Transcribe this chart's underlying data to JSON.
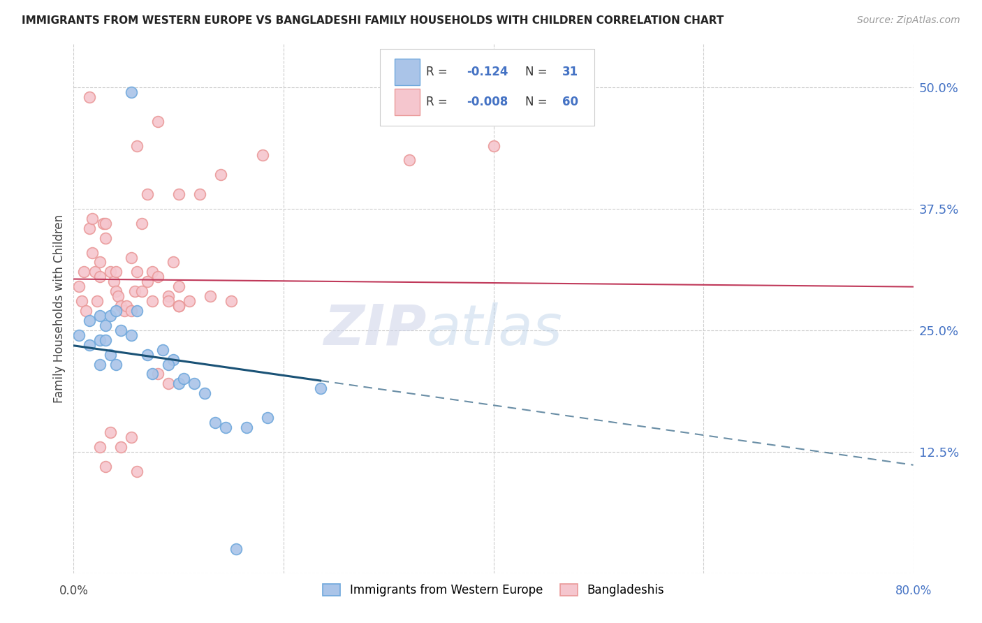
{
  "title": "IMMIGRANTS FROM WESTERN EUROPE VS BANGLADESHI FAMILY HOUSEHOLDS WITH CHILDREN CORRELATION CHART",
  "source": "Source: ZipAtlas.com",
  "ylabel": "Family Households with Children",
  "yticks": [
    0.0,
    0.125,
    0.25,
    0.375,
    0.5
  ],
  "ytick_labels": [
    "",
    "12.5%",
    "25.0%",
    "37.5%",
    "50.0%"
  ],
  "blue_r": -0.124,
  "blue_n": 31,
  "pink_r": -0.008,
  "pink_n": 60,
  "blue_edge_color": "#6fa8dc",
  "pink_edge_color": "#ea9999",
  "blue_line_color": "#1a5276",
  "pink_line_color": "#c0395a",
  "blue_fill_color": "#aac4e8",
  "pink_fill_color": "#f5c6ce",
  "xlim": [
    0.0,
    0.8
  ],
  "ylim": [
    0.0,
    0.545
  ],
  "blue_x": [
    0.055,
    0.005,
    0.015,
    0.025,
    0.015,
    0.025,
    0.03,
    0.035,
    0.04,
    0.025,
    0.03,
    0.035,
    0.045,
    0.04,
    0.055,
    0.06,
    0.07,
    0.075,
    0.085,
    0.095,
    0.09,
    0.1,
    0.105,
    0.115,
    0.125,
    0.135,
    0.145,
    0.165,
    0.185,
    0.235,
    0.155
  ],
  "blue_y": [
    0.495,
    0.245,
    0.26,
    0.265,
    0.235,
    0.24,
    0.255,
    0.265,
    0.27,
    0.215,
    0.24,
    0.225,
    0.25,
    0.215,
    0.245,
    0.27,
    0.225,
    0.205,
    0.23,
    0.22,
    0.215,
    0.195,
    0.2,
    0.195,
    0.185,
    0.155,
    0.15,
    0.15,
    0.16,
    0.19,
    0.025
  ],
  "pink_x": [
    0.005,
    0.01,
    0.008,
    0.012,
    0.015,
    0.018,
    0.02,
    0.018,
    0.022,
    0.025,
    0.025,
    0.028,
    0.03,
    0.03,
    0.035,
    0.038,
    0.04,
    0.04,
    0.042,
    0.045,
    0.048,
    0.05,
    0.055,
    0.058,
    0.06,
    0.065,
    0.07,
    0.075,
    0.08,
    0.09,
    0.095,
    0.1,
    0.11,
    0.13,
    0.15,
    0.1,
    0.12,
    0.14,
    0.08,
    0.06,
    0.065,
    0.07,
    0.075,
    0.055,
    0.09,
    0.1,
    0.035,
    0.045,
    0.025,
    0.03,
    0.32,
    0.1,
    0.1,
    0.055,
    0.06,
    0.08,
    0.18,
    0.4,
    0.09,
    0.015
  ],
  "pink_y": [
    0.295,
    0.31,
    0.28,
    0.27,
    0.355,
    0.365,
    0.31,
    0.33,
    0.28,
    0.305,
    0.32,
    0.36,
    0.36,
    0.345,
    0.31,
    0.3,
    0.31,
    0.29,
    0.285,
    0.275,
    0.27,
    0.275,
    0.325,
    0.29,
    0.31,
    0.29,
    0.3,
    0.31,
    0.305,
    0.285,
    0.32,
    0.295,
    0.28,
    0.285,
    0.28,
    0.39,
    0.39,
    0.41,
    0.465,
    0.44,
    0.36,
    0.39,
    0.28,
    0.27,
    0.28,
    0.275,
    0.145,
    0.13,
    0.13,
    0.11,
    0.425,
    0.275,
    0.275,
    0.14,
    0.105,
    0.205,
    0.43,
    0.44,
    0.195,
    0.49
  ],
  "background_color": "#ffffff",
  "grid_color": "#cccccc",
  "watermark_zip_color": "#d0d4e8",
  "watermark_atlas_color": "#b8d0e8",
  "xtick_positions": [
    0.0,
    0.2,
    0.4,
    0.6,
    0.8
  ]
}
